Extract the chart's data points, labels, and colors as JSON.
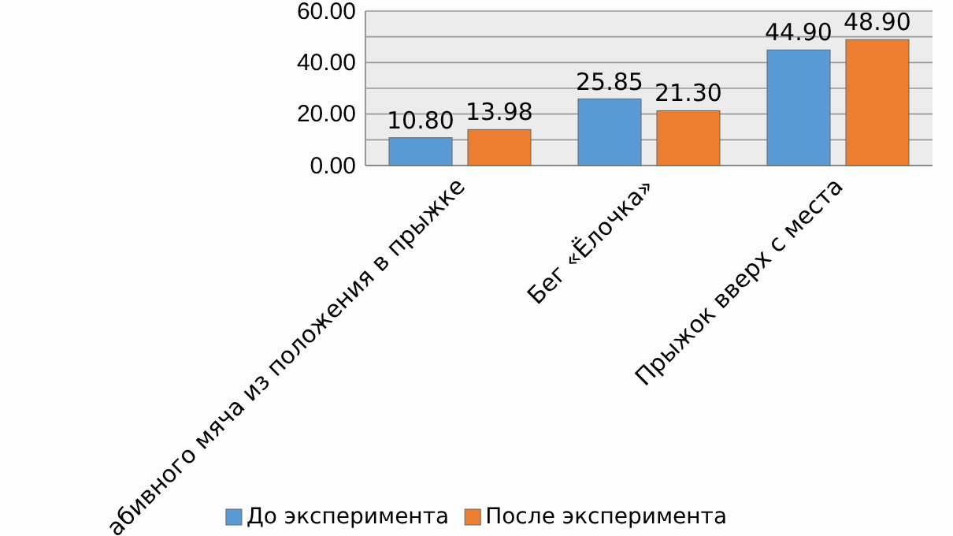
{
  "chart_data": {
    "type": "bar",
    "categories": [
      "абивного мяча из положения в прыжке",
      "Бег «Ёлочка»",
      "Прыжок вверх с места"
    ],
    "series": [
      {
        "name": "До эксперимента",
        "color": "#5b9bd5",
        "values": [
          10.8,
          25.85,
          44.9
        ],
        "value_labels": [
          "10.80",
          "25.85",
          "44.90"
        ]
      },
      {
        "name": "После эксперимента",
        "color": "#ed7d31",
        "values": [
          13.98,
          21.3,
          48.9
        ],
        "value_labels": [
          "13.98",
          "21.30",
          "48.90"
        ]
      }
    ],
    "ylim": [
      0,
      60
    ],
    "yticks": [
      {
        "value": 0,
        "label": "0.00"
      },
      {
        "value": 10,
        "label": null
      },
      {
        "value": 20,
        "label": "20.00"
      },
      {
        "value": 30,
        "label": null
      },
      {
        "value": 40,
        "label": "40.00"
      },
      {
        "value": 50,
        "label": null
      },
      {
        "value": 60,
        "label": "60.00"
      }
    ],
    "grid": "y",
    "legend": "bottom"
  }
}
